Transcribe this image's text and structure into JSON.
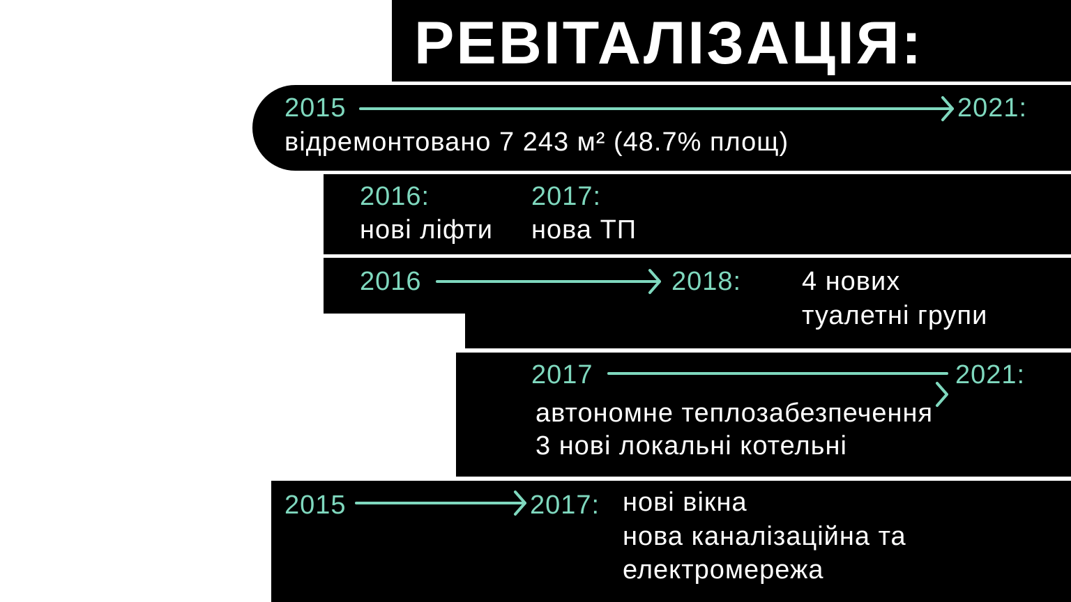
{
  "title": "РЕВІТАЛІЗАЦІЯ:",
  "accent_color": "#7fd8be",
  "blocks": [
    {
      "start": "2015",
      "end": "2021:",
      "lines": [
        "відремонтовано 7 243 м² (48.7% площ)"
      ]
    },
    {
      "items": [
        {
          "year": "2016:",
          "text": "нові ліфти"
        },
        {
          "year": "2017:",
          "text": "нова ТП"
        }
      ]
    },
    {
      "start": "2016",
      "end": "2018:",
      "lines": [
        "4 нових",
        "туалетні групи"
      ]
    },
    {
      "start": "2017",
      "end": "2021:",
      "lines": [
        "автономне теплозабезпечення",
        "3 нові локальні котельні"
      ]
    },
    {
      "start": "2015",
      "end": "2017:",
      "lines": [
        "нові вікна",
        "нова каналізаційна та",
        "електромережа"
      ]
    }
  ]
}
